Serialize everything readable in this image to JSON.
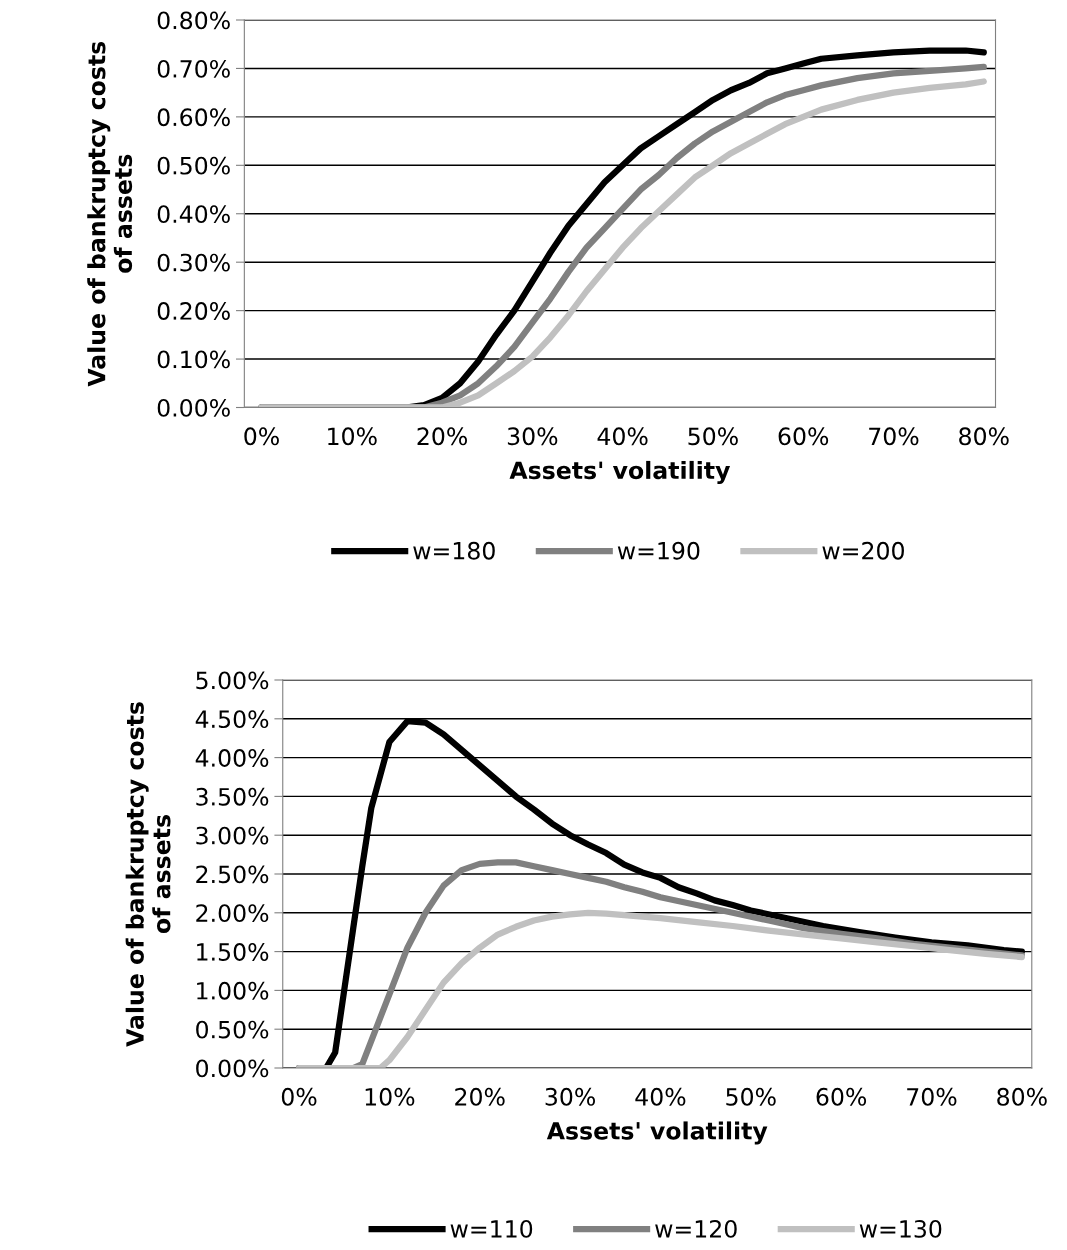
{
  "chart_data": [
    {
      "type": "line",
      "xlabel": "Assets' volatility",
      "ylabel": "Value of bankruptcy costs\nof assets",
      "xlim": [
        -1.9,
        81.3
      ],
      "ylim": [
        0,
        0.8
      ],
      "xticks": [
        {
          "value": 0,
          "label": "0%"
        },
        {
          "value": 10,
          "label": "10%"
        },
        {
          "value": 20,
          "label": "20%"
        },
        {
          "value": 30,
          "label": "30%"
        },
        {
          "value": 40,
          "label": "40%"
        },
        {
          "value": 50,
          "label": "50%"
        },
        {
          "value": 60,
          "label": "60%"
        },
        {
          "value": 70,
          "label": "70%"
        },
        {
          "value": 80,
          "label": "80%"
        }
      ],
      "yticks": [
        {
          "value": 0,
          "label": "0.00%"
        },
        {
          "value": 0.1,
          "label": "0.10%"
        },
        {
          "value": 0.2,
          "label": "0.20%"
        },
        {
          "value": 0.3,
          "label": "0.30%"
        },
        {
          "value": 0.4,
          "label": "0.40%"
        },
        {
          "value": 0.5,
          "label": "0.50%"
        },
        {
          "value": 0.6,
          "label": "0.60%"
        },
        {
          "value": 0.7,
          "label": "0.70%"
        },
        {
          "value": 0.8,
          "label": "0.80%"
        }
      ],
      "grid": "y",
      "legend": "bottom",
      "marker": "none",
      "line_style": "solid",
      "series": [
        {
          "name": "w=180",
          "color": "#000000",
          "x": [
            0,
            5,
            10,
            16,
            18,
            20,
            22,
            24,
            26,
            28,
            30,
            32,
            34,
            36,
            38,
            40,
            42,
            44,
            46,
            48,
            50,
            52,
            54,
            56,
            58,
            60,
            62,
            66,
            70,
            74,
            78,
            80
          ],
          "values": [
            0,
            0,
            0,
            0,
            0.005,
            0.02,
            0.05,
            0.095,
            0.15,
            0.2,
            0.26,
            0.32,
            0.375,
            0.42,
            0.465,
            0.5,
            0.535,
            0.56,
            0.585,
            0.61,
            0.635,
            0.655,
            0.67,
            0.69,
            0.7,
            0.71,
            0.72,
            0.727,
            0.733,
            0.737,
            0.737,
            0.733
          ]
        },
        {
          "name": "w=190",
          "color": "#808080",
          "x": [
            0,
            5,
            10,
            18,
            20,
            22,
            24,
            26,
            28,
            30,
            32,
            34,
            36,
            38,
            40,
            42,
            44,
            46,
            48,
            50,
            52,
            54,
            56,
            58,
            60,
            62,
            66,
            70,
            74,
            78,
            80
          ],
          "values": [
            0,
            0,
            0,
            0,
            0.01,
            0.025,
            0.05,
            0.085,
            0.125,
            0.175,
            0.225,
            0.28,
            0.33,
            0.37,
            0.41,
            0.45,
            0.48,
            0.515,
            0.545,
            0.57,
            0.59,
            0.61,
            0.63,
            0.645,
            0.655,
            0.665,
            0.68,
            0.69,
            0.695,
            0.7,
            0.703
          ]
        },
        {
          "name": "w=200",
          "color": "#c0c0c0",
          "x": [
            0,
            5,
            10,
            20,
            22,
            24,
            26,
            28,
            30,
            32,
            34,
            36,
            38,
            40,
            42,
            44,
            46,
            48,
            50,
            52,
            54,
            56,
            58,
            60,
            62,
            66,
            70,
            74,
            78,
            80
          ],
          "values": [
            0,
            0,
            0,
            0,
            0.01,
            0.025,
            0.05,
            0.075,
            0.105,
            0.145,
            0.19,
            0.24,
            0.285,
            0.33,
            0.37,
            0.405,
            0.44,
            0.475,
            0.5,
            0.525,
            0.545,
            0.565,
            0.585,
            0.6,
            0.615,
            0.635,
            0.65,
            0.66,
            0.667,
            0.673
          ]
        }
      ]
    },
    {
      "type": "line",
      "xlabel": "Assets' volatility",
      "ylabel": "Value of bankruptcy costs\nof assets",
      "xlim": [
        -1.8,
        81.1
      ],
      "ylim": [
        0,
        5
      ],
      "xticks": [
        {
          "value": 0,
          "label": "0%"
        },
        {
          "value": 10,
          "label": "10%"
        },
        {
          "value": 20,
          "label": "20%"
        },
        {
          "value": 30,
          "label": "30%"
        },
        {
          "value": 40,
          "label": "40%"
        },
        {
          "value": 50,
          "label": "50%"
        },
        {
          "value": 60,
          "label": "60%"
        },
        {
          "value": 70,
          "label": "70%"
        },
        {
          "value": 80,
          "label": "80%"
        }
      ],
      "yticks": [
        {
          "value": 0,
          "label": "0.00%"
        },
        {
          "value": 0.5,
          "label": "0.50%"
        },
        {
          "value": 1,
          "label": "1.00%"
        },
        {
          "value": 1.5,
          "label": "1.50%"
        },
        {
          "value": 2,
          "label": "2.00%"
        },
        {
          "value": 2.5,
          "label": "2.50%"
        },
        {
          "value": 3,
          "label": "3.00%"
        },
        {
          "value": 3.5,
          "label": "3.50%"
        },
        {
          "value": 4,
          "label": "4.00%"
        },
        {
          "value": 4.5,
          "label": "4.50%"
        },
        {
          "value": 5,
          "label": "5.00%"
        }
      ],
      "grid": "y",
      "legend": "bottom",
      "marker": "none",
      "line_style": "solid",
      "series": [
        {
          "name": "w=110",
          "color": "#000000",
          "x": [
            0,
            3,
            4,
            5,
            6,
            7,
            8,
            10,
            12,
            14,
            16,
            18,
            20,
            22,
            24,
            26,
            28,
            30,
            32,
            34,
            36,
            38,
            40,
            42,
            44,
            46,
            48,
            50,
            54,
            58,
            62,
            66,
            70,
            74,
            78,
            80
          ],
          "values": [
            0,
            0,
            0.2,
            1.0,
            1.8,
            2.6,
            3.35,
            4.2,
            4.47,
            4.45,
            4.3,
            4.1,
            3.9,
            3.7,
            3.5,
            3.33,
            3.15,
            3.0,
            2.88,
            2.77,
            2.62,
            2.52,
            2.45,
            2.33,
            2.25,
            2.16,
            2.1,
            2.03,
            1.93,
            1.83,
            1.75,
            1.68,
            1.62,
            1.58,
            1.52,
            1.5
          ]
        },
        {
          "name": "w=120",
          "color": "#808080",
          "x": [
            0,
            6,
            7,
            8,
            10,
            12,
            14,
            16,
            18,
            20,
            22,
            24,
            26,
            28,
            30,
            32,
            34,
            36,
            38,
            40,
            44,
            48,
            52,
            56,
            60,
            64,
            68,
            72,
            76,
            80
          ],
          "values": [
            0,
            0,
            0.05,
            0.35,
            0.95,
            1.55,
            2.0,
            2.35,
            2.55,
            2.63,
            2.65,
            2.65,
            2.6,
            2.55,
            2.5,
            2.45,
            2.4,
            2.33,
            2.27,
            2.2,
            2.1,
            2.0,
            1.9,
            1.8,
            1.73,
            1.67,
            1.6,
            1.55,
            1.5,
            1.45
          ]
        },
        {
          "name": "w=130",
          "color": "#c0c0c0",
          "x": [
            0,
            9,
            10,
            12,
            14,
            16,
            18,
            20,
            22,
            24,
            26,
            28,
            30,
            32,
            34,
            36,
            40,
            44,
            48,
            52,
            56,
            60,
            64,
            68,
            72,
            76,
            80
          ],
          "values": [
            0,
            0,
            0.1,
            0.4,
            0.75,
            1.1,
            1.35,
            1.55,
            1.72,
            1.82,
            1.9,
            1.95,
            1.98,
            2.0,
            1.99,
            1.97,
            1.93,
            1.88,
            1.83,
            1.77,
            1.72,
            1.67,
            1.62,
            1.57,
            1.52,
            1.47,
            1.43
          ]
        }
      ]
    }
  ]
}
